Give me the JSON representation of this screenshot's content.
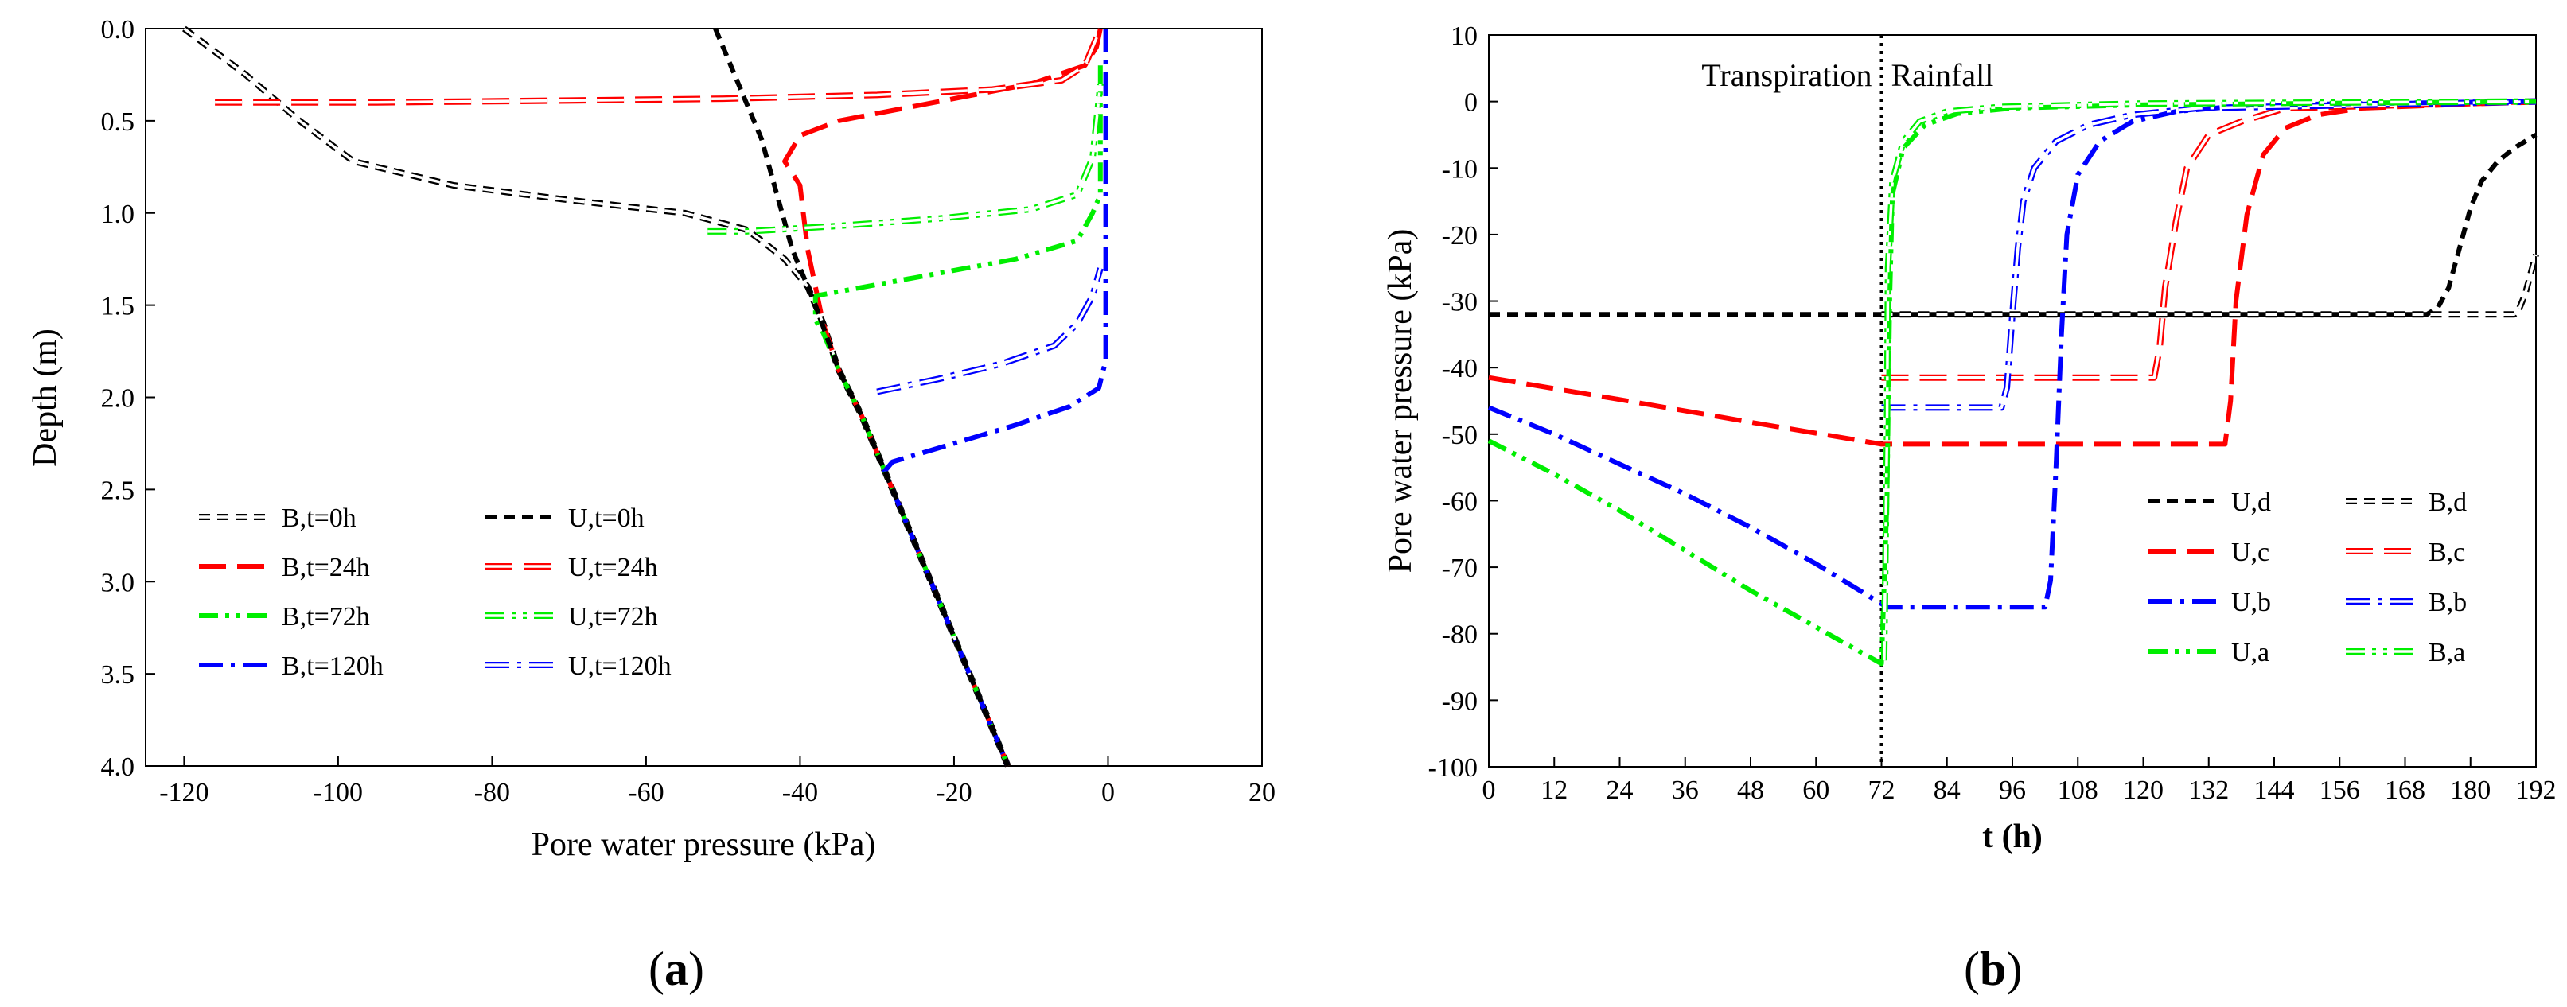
{
  "chart_data": [
    {
      "id": "a",
      "panel_label": "(a)",
      "panel_letter": "a",
      "type": "line",
      "xlabel": "Pore water pressure (kPa)",
      "ylabel": "Depth (m)",
      "xlim": [
        -125,
        20
      ],
      "ylim": [
        0,
        4
      ],
      "y_inverted": true,
      "xticks": [
        -120,
        -100,
        -80,
        -60,
        -40,
        -20,
        0,
        20
      ],
      "yticks": [
        0.0,
        0.5,
        1.0,
        1.5,
        2.0,
        2.5,
        3.0,
        3.5,
        4.0
      ],
      "ytick_labels": [
        "0.0",
        "0.5",
        "1.0",
        "1.5",
        "2.0",
        "2.5",
        "3.0",
        "3.5",
        "4.0"
      ],
      "legend_position": "bottom-left",
      "legend_columns": 2,
      "series": [
        {
          "name": "B,t=0h",
          "color": "#000000",
          "style": "short-dash",
          "hollow": true,
          "points": [
            [
              -120,
              0.0
            ],
            [
              -112,
              0.25
            ],
            [
              -105,
              0.5
            ],
            [
              -98,
              0.72
            ],
            [
              -85,
              0.85
            ],
            [
              -70,
              0.93
            ],
            [
              -55,
              1.0
            ],
            [
              -47,
              1.09
            ],
            [
              -45,
              1.15
            ],
            [
              -42,
              1.25
            ],
            [
              -39,
              1.4
            ],
            [
              -37,
              1.6
            ],
            [
              -35,
              1.85
            ],
            [
              -32,
              2.1
            ],
            [
              -29,
              2.4
            ],
            [
              -25,
              2.8
            ],
            [
              -21,
              3.2
            ],
            [
              -17,
              3.6
            ],
            [
              -13,
              4.0
            ]
          ]
        },
        {
          "name": "B,t=24h",
          "color": "#ff0000",
          "style": "long-dash",
          "hollow": false,
          "points": [
            [
              -1,
              0.0
            ],
            [
              -1.5,
              0.1
            ],
            [
              -3,
              0.2
            ],
            [
              -10,
              0.3
            ],
            [
              -25,
              0.42
            ],
            [
              -35,
              0.5
            ],
            [
              -40,
              0.58
            ],
            [
              -42,
              0.72
            ],
            [
              -40,
              0.85
            ],
            [
              -39,
              1.2
            ],
            [
              -37,
              1.6
            ],
            [
              -35,
              1.85
            ],
            [
              -32,
              2.1
            ],
            [
              -29,
              2.4
            ],
            [
              -25,
              2.8
            ],
            [
              -21,
              3.2
            ],
            [
              -17,
              3.6
            ],
            [
              -13,
              4.0
            ]
          ]
        },
        {
          "name": "B,t=72h",
          "color": "#00ee00",
          "style": "dash-dot-dot",
          "hollow": false,
          "points": [
            [
              -1,
              0.2
            ],
            [
              -1,
              0.9
            ],
            [
              -2,
              1.0
            ],
            [
              -4,
              1.15
            ],
            [
              -12,
              1.25
            ],
            [
              -25,
              1.35
            ],
            [
              -38,
              1.45
            ],
            [
              -38,
              1.58
            ],
            [
              -37,
              1.65
            ],
            [
              -35,
              1.85
            ],
            [
              -32,
              2.1
            ],
            [
              -29,
              2.4
            ],
            [
              -25,
              2.8
            ],
            [
              -21,
              3.2
            ],
            [
              -17,
              3.6
            ],
            [
              -13,
              4.0
            ]
          ]
        },
        {
          "name": "B,t=120h",
          "color": "#0000ff",
          "style": "dash-dot",
          "hollow": false,
          "points": [
            [
              -0.3,
              0.0
            ],
            [
              -0.3,
              1.8
            ],
            [
              -1.2,
              1.95
            ],
            [
              -5,
              2.05
            ],
            [
              -12,
              2.15
            ],
            [
              -20,
              2.25
            ],
            [
              -28,
              2.35
            ],
            [
              -29,
              2.4
            ],
            [
              -25,
              2.8
            ],
            [
              -21,
              3.2
            ],
            [
              -17,
              3.6
            ],
            [
              -13,
              4.0
            ]
          ]
        },
        {
          "name": "U,t=0h",
          "color": "#000000",
          "style": "short-dash",
          "hollow": false,
          "points": [
            [
              -51,
              0.0
            ],
            [
              -48,
              0.3
            ],
            [
              -45,
              0.6
            ],
            [
              -43,
              0.9
            ],
            [
              -41,
              1.2
            ],
            [
              -38,
              1.5
            ],
            [
              -35,
              1.85
            ],
            [
              -32,
              2.1
            ],
            [
              -29,
              2.4
            ],
            [
              -25,
              2.8
            ],
            [
              -21,
              3.2
            ],
            [
              -17,
              3.6
            ],
            [
              -13,
              4.0
            ]
          ]
        },
        {
          "name": "U,t=24h",
          "color": "#ff0000",
          "style": "long-dash",
          "hollow": true,
          "points": [
            [
              -116,
              0.4
            ],
            [
              -95,
              0.4
            ],
            [
              -70,
              0.39
            ],
            [
              -50,
              0.38
            ],
            [
              -30,
              0.36
            ],
            [
              -15,
              0.33
            ],
            [
              -6,
              0.28
            ],
            [
              -3,
              0.2
            ],
            [
              -1.5,
              0.05
            ],
            [
              -1,
              0.0
            ]
          ]
        },
        {
          "name": "U,t=72h",
          "color": "#00ee00",
          "style": "dash-dot-dot",
          "hollow": true,
          "points": [
            [
              -52,
              1.1
            ],
            [
              -47,
              1.1
            ],
            [
              -35,
              1.07
            ],
            [
              -22,
              1.03
            ],
            [
              -10,
              0.98
            ],
            [
              -4,
              0.9
            ],
            [
              -2,
              0.7
            ],
            [
              -1,
              0.3
            ]
          ]
        },
        {
          "name": "U,t=120h",
          "color": "#0000ff",
          "style": "dash-dot",
          "hollow": true,
          "points": [
            [
              -30,
              1.97
            ],
            [
              -22,
              1.9
            ],
            [
              -14,
              1.82
            ],
            [
              -7,
              1.72
            ],
            [
              -4,
              1.6
            ],
            [
              -2,
              1.45
            ],
            [
              -1,
              1.3
            ]
          ]
        }
      ]
    },
    {
      "id": "b",
      "panel_label": "(b)",
      "panel_letter": "b",
      "type": "line",
      "xlabel": "t (h)",
      "ylabel": "Pore water pressure (kPa)",
      "xlim": [
        0,
        192
      ],
      "ylim": [
        -100,
        10
      ],
      "xticks": [
        0,
        12,
        24,
        36,
        48,
        60,
        72,
        84,
        96,
        108,
        120,
        132,
        144,
        156,
        168,
        180,
        192
      ],
      "yticks": [
        10,
        0,
        -10,
        -20,
        -30,
        -40,
        -50,
        -60,
        -70,
        -80,
        -90,
        -100
      ],
      "annotations": [
        {
          "text": "Transpiration",
          "x": 72,
          "side": "left"
        },
        {
          "text": "Rainfall",
          "x": 72,
          "side": "right"
        }
      ],
      "divider_x": 72,
      "legend_position": "bottom-right",
      "legend_columns": 2,
      "series": [
        {
          "name": "U,d",
          "color": "#000000",
          "style": "short-dash",
          "hollow": false,
          "points": [
            [
              0,
              -32
            ],
            [
              172,
              -32
            ],
            [
              174,
              -31
            ],
            [
              176,
              -28
            ],
            [
              178,
              -22
            ],
            [
              180,
              -16
            ],
            [
              182,
              -12
            ],
            [
              185,
              -9
            ],
            [
              188,
              -7
            ],
            [
              192,
              -5
            ]
          ]
        },
        {
          "name": "B,d",
          "color": "#000000",
          "style": "short-dash",
          "hollow": true,
          "points": [
            [
              72,
              -32
            ],
            [
              188,
              -32
            ],
            [
              189,
              -31
            ],
            [
              190,
              -29
            ],
            [
              191,
              -26
            ],
            [
              192,
              -23
            ]
          ]
        },
        {
          "name": "U,c",
          "color": "#ff0000",
          "style": "long-dash",
          "hollow": false,
          "points": [
            [
              0,
              -41.5
            ],
            [
              24,
              -44.8
            ],
            [
              48,
              -48.2
            ],
            [
              72,
              -51.5
            ],
            [
              135,
              -51.5
            ],
            [
              136,
              -45
            ],
            [
              137,
              -30
            ],
            [
              139,
              -17
            ],
            [
              142,
              -8
            ],
            [
              146,
              -4
            ],
            [
              152,
              -2
            ],
            [
              160,
              -1
            ],
            [
              192,
              0
            ]
          ]
        },
        {
          "name": "B,c",
          "color": "#ff0000",
          "style": "long-dash",
          "hollow": true,
          "points": [
            [
              72,
              -41.5
            ],
            [
              122,
              -41.5
            ],
            [
              123,
              -37
            ],
            [
              124,
              -28
            ],
            [
              126,
              -18
            ],
            [
              128,
              -10
            ],
            [
              132,
              -5
            ],
            [
              138,
              -3
            ],
            [
              146,
              -1
            ],
            [
              192,
              0
            ]
          ]
        },
        {
          "name": "U,b",
          "color": "#0000ff",
          "style": "dash-dot",
          "hollow": false,
          "points": [
            [
              0,
              -46
            ],
            [
              12,
              -50
            ],
            [
              24,
              -54.5
            ],
            [
              36,
              -59
            ],
            [
              48,
              -64
            ],
            [
              60,
              -69.5
            ],
            [
              72,
              -75.5
            ],
            [
              73,
              -76
            ],
            [
              102,
              -76
            ],
            [
              103,
              -72
            ],
            [
              104,
              -55
            ],
            [
              105,
              -35
            ],
            [
              106,
              -20
            ],
            [
              108,
              -11
            ],
            [
              112,
              -6
            ],
            [
              118,
              -3
            ],
            [
              126,
              -1.5
            ],
            [
              140,
              -0.5
            ],
            [
              192,
              0
            ]
          ]
        },
        {
          "name": "B,b",
          "color": "#0000ff",
          "style": "dash-dot",
          "hollow": true,
          "points": [
            [
              72,
              -46
            ],
            [
              94,
              -46
            ],
            [
              95,
              -43
            ],
            [
              96,
              -32
            ],
            [
              97,
              -22
            ],
            [
              98,
              -15
            ],
            [
              100,
              -10
            ],
            [
              104,
              -6
            ],
            [
              110,
              -3.5
            ],
            [
              118,
              -2
            ],
            [
              130,
              -1
            ],
            [
              192,
              0
            ]
          ]
        },
        {
          "name": "U,a",
          "color": "#00ee00",
          "style": "dash-dot-dot",
          "hollow": false,
          "points": [
            [
              0,
              -51
            ],
            [
              12,
              -56
            ],
            [
              24,
              -61.5
            ],
            [
              36,
              -67.5
            ],
            [
              48,
              -73.5
            ],
            [
              60,
              -79
            ],
            [
              72,
              -84.5
            ],
            [
              73,
              -60
            ],
            [
              73.5,
              -30
            ],
            [
              74,
              -14
            ],
            [
              76,
              -7
            ],
            [
              80,
              -3.5
            ],
            [
              86,
              -1.8
            ],
            [
              96,
              -1
            ],
            [
              120,
              -0.5
            ],
            [
              192,
              0
            ]
          ]
        },
        {
          "name": "B,a",
          "color": "#00ee00",
          "style": "dash-dot-dot",
          "hollow": true,
          "points": [
            [
              72.5,
              -84
            ],
            [
              73,
              -50
            ],
            [
              73.2,
              -25
            ],
            [
              74,
              -12
            ],
            [
              76,
              -6
            ],
            [
              79,
              -3
            ],
            [
              84,
              -1.5
            ],
            [
              94,
              -0.8
            ],
            [
              120,
              -0.3
            ],
            [
              192,
              0
            ]
          ]
        }
      ]
    }
  ]
}
